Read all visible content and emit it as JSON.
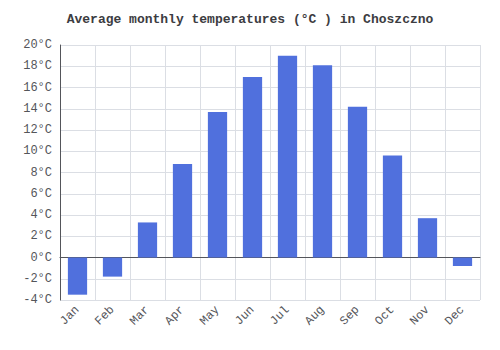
{
  "chart_data": {
    "type": "bar",
    "title": "Average monthly temperatures (°C ) in Choszczno",
    "categories": [
      "Jan",
      "Feb",
      "Mar",
      "Apr",
      "May",
      "Jun",
      "Jul",
      "Aug",
      "Sep",
      "Oct",
      "Nov",
      "Dec"
    ],
    "values": [
      -3.5,
      -1.8,
      3.3,
      8.8,
      13.7,
      17.0,
      19.0,
      18.1,
      14.2,
      9.6,
      3.7,
      -0.8
    ],
    "ylim": [
      -4,
      20
    ],
    "yticks": [
      {
        "value": -4,
        "label": "-4°C"
      },
      {
        "value": -2,
        "label": "-2°C"
      },
      {
        "value": 0,
        "label": "0°C"
      },
      {
        "value": 2,
        "label": "2°C"
      },
      {
        "value": 4,
        "label": "4°C"
      },
      {
        "value": 6,
        "label": "6°C"
      },
      {
        "value": 8,
        "label": "8°C"
      },
      {
        "value": 10,
        "label": "10°C"
      },
      {
        "value": 12,
        "label": "12°C"
      },
      {
        "value": 14,
        "label": "14°C"
      },
      {
        "value": 16,
        "label": "16°C"
      },
      {
        "value": 18,
        "label": "18°C"
      },
      {
        "value": 20,
        "label": "20°C"
      }
    ],
    "grid": true
  }
}
